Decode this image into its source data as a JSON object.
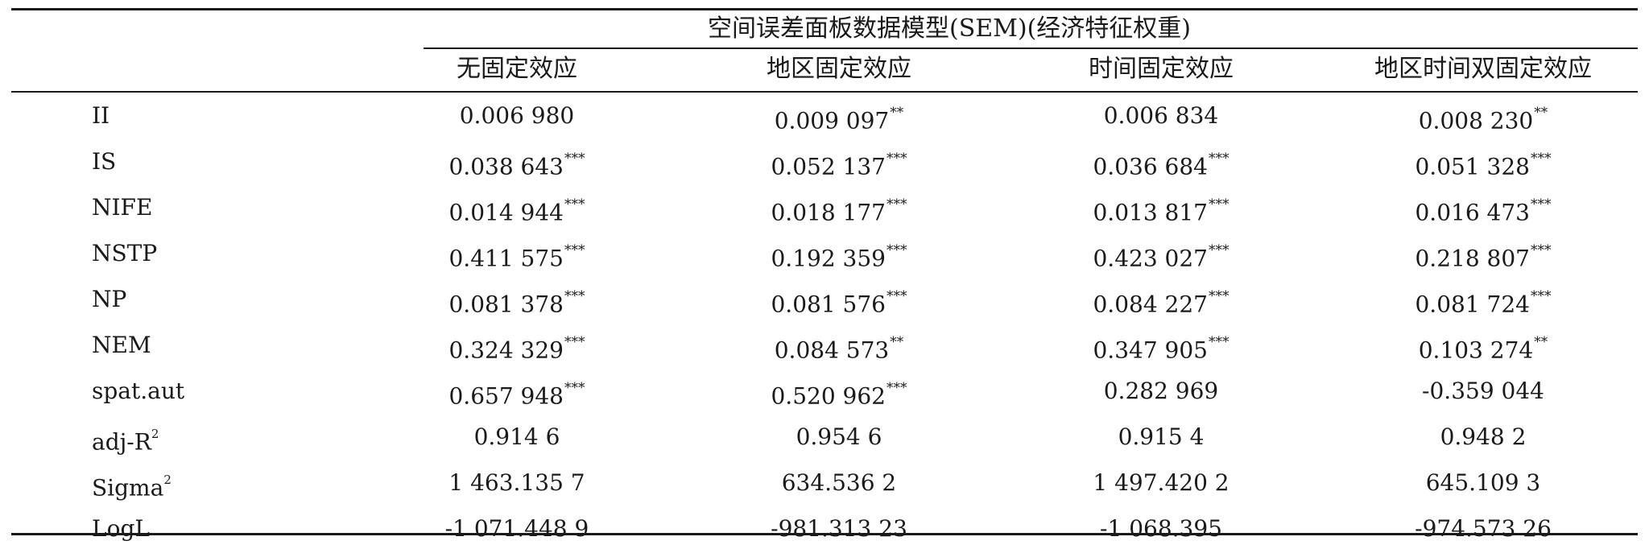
{
  "table": {
    "group_header": "空间误差面板数据模型(SEM)(经济特征权重)",
    "columns": [
      "无固定效应",
      "地区固定效应",
      "时间固定效应",
      "地区时间双固定效应"
    ],
    "rows": [
      {
        "label": "II",
        "label_sup": "",
        "cells": [
          {
            "value": "0.006 980",
            "stars": ""
          },
          {
            "value": "0.009 097",
            "stars": "**"
          },
          {
            "value": "0.006 834",
            "stars": ""
          },
          {
            "value": "0.008 230",
            "stars": "**"
          }
        ]
      },
      {
        "label": "IS",
        "label_sup": "",
        "cells": [
          {
            "value": "0.038 643",
            "stars": "***"
          },
          {
            "value": "0.052 137",
            "stars": "***"
          },
          {
            "value": "0.036 684",
            "stars": "***"
          },
          {
            "value": "0.051 328",
            "stars": "***"
          }
        ]
      },
      {
        "label": "NIFE",
        "label_sup": "",
        "cells": [
          {
            "value": "0.014 944",
            "stars": "***"
          },
          {
            "value": "0.018 177",
            "stars": "***"
          },
          {
            "value": "0.013 817",
            "stars": "***"
          },
          {
            "value": "0.016 473",
            "stars": "***"
          }
        ]
      },
      {
        "label": "NSTP",
        "label_sup": "",
        "cells": [
          {
            "value": "0.411 575",
            "stars": "***"
          },
          {
            "value": "0.192 359",
            "stars": "***"
          },
          {
            "value": "0.423 027",
            "stars": "***"
          },
          {
            "value": "0.218 807",
            "stars": "***"
          }
        ]
      },
      {
        "label": "NP",
        "label_sup": "",
        "cells": [
          {
            "value": "0.081 378",
            "stars": "***"
          },
          {
            "value": "0.081 576",
            "stars": "***"
          },
          {
            "value": "0.084 227",
            "stars": "***"
          },
          {
            "value": "0.081 724",
            "stars": "***"
          }
        ]
      },
      {
        "label": "NEM",
        "label_sup": "",
        "cells": [
          {
            "value": "0.324 329",
            "stars": "***"
          },
          {
            "value": "0.084 573",
            "stars": "**"
          },
          {
            "value": "0.347 905",
            "stars": "***"
          },
          {
            "value": "0.103 274",
            "stars": "**"
          }
        ]
      },
      {
        "label": "spat.aut",
        "label_sup": "",
        "cells": [
          {
            "value": "0.657 948",
            "stars": "***"
          },
          {
            "value": "0.520 962",
            "stars": "***"
          },
          {
            "value": "0.282 969",
            "stars": ""
          },
          {
            "value": "-0.359 044",
            "stars": ""
          }
        ]
      },
      {
        "label": "adj-R",
        "label_sup": "2",
        "cells": [
          {
            "value": "0.914 6",
            "stars": ""
          },
          {
            "value": "0.954 6",
            "stars": ""
          },
          {
            "value": "0.915 4",
            "stars": ""
          },
          {
            "value": "0.948 2",
            "stars": ""
          }
        ]
      },
      {
        "label": "Sigma",
        "label_sup": "2",
        "cells": [
          {
            "value": "1 463.135 7",
            "stars": ""
          },
          {
            "value": "634.536 2",
            "stars": ""
          },
          {
            "value": "1 497.420 2",
            "stars": ""
          },
          {
            "value": "645.109 3",
            "stars": ""
          }
        ]
      },
      {
        "label": "LogL",
        "label_sup": "",
        "cells": [
          {
            "value": "-1 071.448 9",
            "stars": ""
          },
          {
            "value": "-981.313 23",
            "stars": ""
          },
          {
            "value": "-1 068.395",
            "stars": ""
          },
          {
            "value": "-974.573 26",
            "stars": ""
          }
        ]
      }
    ]
  }
}
